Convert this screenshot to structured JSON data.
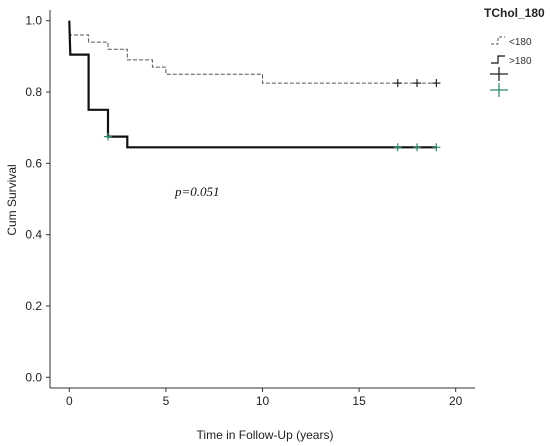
{
  "chart_data": {
    "type": "line",
    "subtype": "kaplan-meier",
    "xlabel": "Time in Follow-Up (years)",
    "ylabel": "Cum Survival",
    "xlim": [
      -1,
      21
    ],
    "ylim": [
      -0.03,
      1.03
    ],
    "xticks": [
      "0",
      "5",
      "10",
      "15",
      "20"
    ],
    "yticks": [
      "0.0",
      "0.2",
      "0.4",
      "0.6",
      "0.8",
      "1.0"
    ],
    "grid": false,
    "legend": {
      "title": "TChol_180",
      "placement": "top-right",
      "entries": [
        "<180",
        ">180"
      ],
      "censor_marks": 2
    },
    "annotation": "p=0.051",
    "series": [
      {
        "name": "<180",
        "style": "dashed",
        "color": "#555555",
        "steps": [
          [
            0,
            1.0
          ],
          [
            0.05,
            0.96
          ],
          [
            1,
            0.96
          ],
          [
            1,
            0.94
          ],
          [
            2,
            0.94
          ],
          [
            2,
            0.92
          ],
          [
            3,
            0.92
          ],
          [
            3,
            0.89
          ],
          [
            4.3,
            0.89
          ],
          [
            4.3,
            0.87
          ],
          [
            5,
            0.87
          ],
          [
            5,
            0.85
          ],
          [
            10,
            0.85
          ],
          [
            10,
            0.825
          ],
          [
            19,
            0.825
          ]
        ],
        "censored": [
          [
            17,
            0.825
          ],
          [
            18,
            0.825
          ],
          [
            19,
            0.825
          ]
        ]
      },
      {
        "name": ">180",
        "style": "solid",
        "color": "#111111",
        "steps": [
          [
            0,
            1.0
          ],
          [
            0.05,
            0.905
          ],
          [
            1,
            0.905
          ],
          [
            1,
            0.75
          ],
          [
            2,
            0.75
          ],
          [
            2,
            0.675
          ],
          [
            3,
            0.675
          ],
          [
            3,
            0.645
          ],
          [
            19,
            0.645
          ]
        ],
        "censored": [
          [
            2,
            0.675
          ],
          [
            17,
            0.645
          ],
          [
            18,
            0.645
          ],
          [
            19,
            0.645
          ]
        ]
      }
    ],
    "colors": {
      "censor_marker": "#2e8b72",
      "dashed_line": "#555555",
      "solid_line": "#111111",
      "axis": "#333333"
    }
  }
}
